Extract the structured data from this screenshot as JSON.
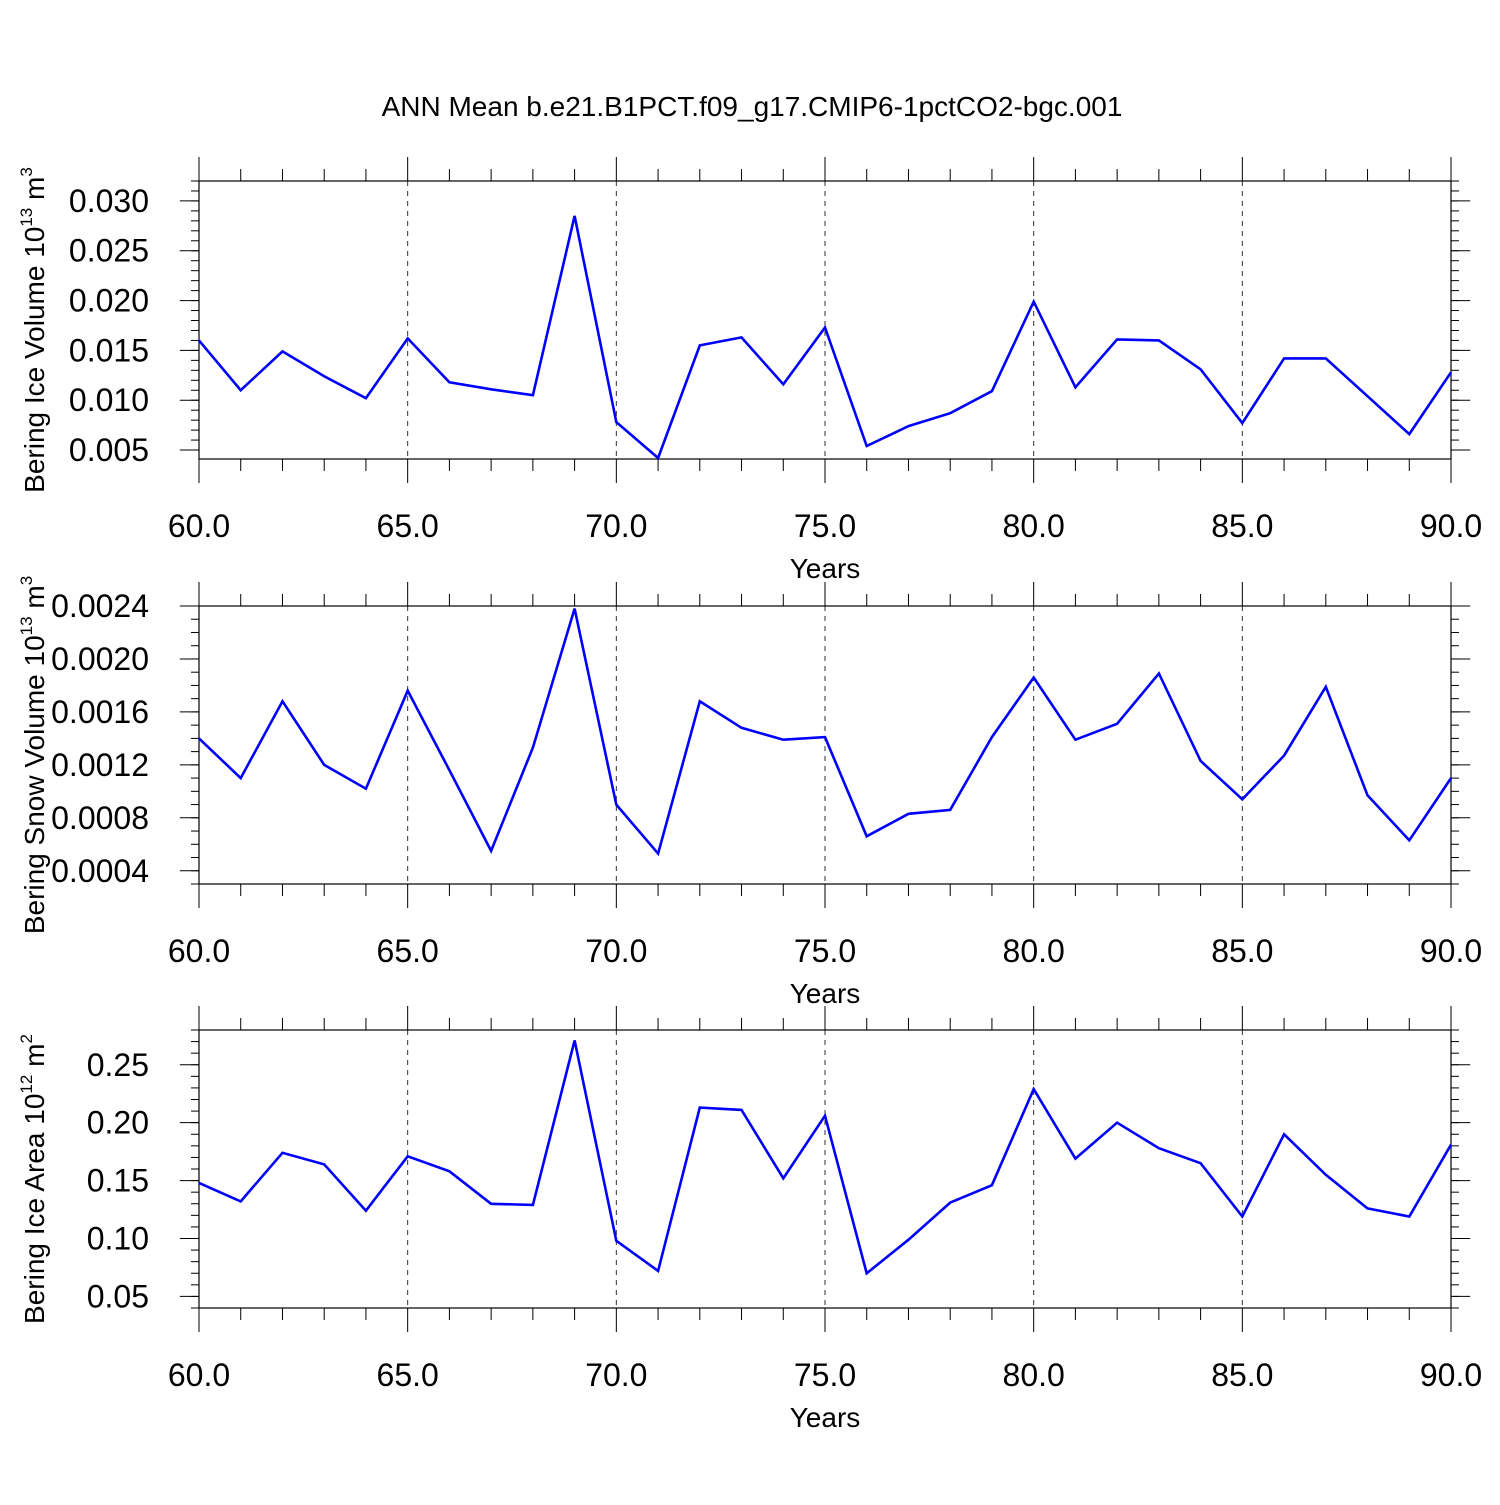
{
  "title": "ANN Mean b.e21.B1PCT.f09_g17.CMIP6-1pctCO2-bgc.001",
  "chart_data": [
    {
      "type": "line",
      "xlabel": "Years",
      "ylabel_main": "Bering Ice Volume 10",
      "ylabel_sup1": "13",
      "ylabel_mid": " m",
      "ylabel_sup2": "3",
      "xlim": [
        60,
        90
      ],
      "ylim": [
        0.0041,
        0.032
      ],
      "x_ticks": [
        60,
        65,
        70,
        75,
        80,
        85,
        90
      ],
      "x_tick_labels": [
        "60.0",
        "65.0",
        "70.0",
        "75.0",
        "80.0",
        "85.0",
        "90.0"
      ],
      "y_ticks": [
        0.005,
        0.01,
        0.015,
        0.02,
        0.025,
        0.03
      ],
      "y_tick_labels": [
        "0.005",
        "0.010",
        "0.015",
        "0.020",
        "0.025",
        "0.030"
      ],
      "y_minor_step": 0.001,
      "x": [
        60,
        61,
        62,
        63,
        64,
        65,
        66,
        67,
        68,
        69,
        70,
        71,
        72,
        73,
        74,
        75,
        76,
        77,
        78,
        79,
        80,
        81,
        82,
        83,
        84,
        85,
        86,
        87,
        88,
        89,
        90
      ],
      "series": [
        {
          "values": [
            0.016,
            0.011,
            0.0149,
            0.0124,
            0.0102,
            0.0162,
            0.0118,
            0.0111,
            0.0105,
            0.0285,
            0.0078,
            0.0042,
            0.0155,
            0.0163,
            0.0116,
            0.0173,
            0.0054,
            0.0074,
            0.0087,
            0.0109,
            0.0199,
            0.0113,
            0.0161,
            0.016,
            0.0131,
            0.0077,
            0.0142,
            0.0142,
            0.0104,
            0.0066,
            0.0128
          ],
          "color": "#0000ff"
        }
      ]
    },
    {
      "type": "line",
      "xlabel": "Years",
      "ylabel_main": "Bering Snow Volume 10",
      "ylabel_sup1": "13",
      "ylabel_mid": " m",
      "ylabel_sup2": "3",
      "xlim": [
        60,
        90
      ],
      "ylim": [
        0.0003,
        0.0024
      ],
      "x_ticks": [
        60,
        65,
        70,
        75,
        80,
        85,
        90
      ],
      "x_tick_labels": [
        "60.0",
        "65.0",
        "70.0",
        "75.0",
        "80.0",
        "85.0",
        "90.0"
      ],
      "y_ticks": [
        0.0004,
        0.0008,
        0.0012,
        0.0016,
        0.002,
        0.0024
      ],
      "y_tick_labels": [
        "0.0004",
        "0.0008",
        "0.0012",
        "0.0016",
        "0.0020",
        "0.0024"
      ],
      "y_minor_step": 0.0001,
      "x": [
        60,
        61,
        62,
        63,
        64,
        65,
        66,
        67,
        68,
        69,
        70,
        71,
        72,
        73,
        74,
        75,
        76,
        77,
        78,
        79,
        80,
        81,
        82,
        83,
        84,
        85,
        86,
        87,
        88,
        89,
        90
      ],
      "series": [
        {
          "values": [
            0.0014,
            0.0011,
            0.00168,
            0.0012,
            0.00102,
            0.00176,
            0.00116,
            0.00055,
            0.00133,
            0.00238,
            0.0009,
            0.00053,
            0.00168,
            0.00148,
            0.00139,
            0.00141,
            0.00066,
            0.00083,
            0.00086,
            0.00141,
            0.00186,
            0.00139,
            0.00151,
            0.00189,
            0.00123,
            0.00094,
            0.00127,
            0.00179,
            0.00097,
            0.00063,
            0.0011
          ],
          "color": "#0000ff"
        }
      ]
    },
    {
      "type": "line",
      "xlabel": "Years",
      "ylabel_main": "Bering Ice Area 10",
      "ylabel_sup1": "12",
      "ylabel_mid": " m",
      "ylabel_sup2": "2",
      "xlim": [
        60,
        90
      ],
      "ylim": [
        0.04,
        0.28
      ],
      "x_ticks": [
        60,
        65,
        70,
        75,
        80,
        85,
        90
      ],
      "x_tick_labels": [
        "60.0",
        "65.0",
        "70.0",
        "75.0",
        "80.0",
        "85.0",
        "90.0"
      ],
      "y_ticks": [
        0.05,
        0.1,
        0.15,
        0.2,
        0.25
      ],
      "y_tick_labels": [
        "0.05",
        "0.10",
        "0.15",
        "0.20",
        "0.25"
      ],
      "y_minor_step": 0.01,
      "x": [
        60,
        61,
        62,
        63,
        64,
        65,
        66,
        67,
        68,
        69,
        70,
        71,
        72,
        73,
        74,
        75,
        76,
        77,
        78,
        79,
        80,
        81,
        82,
        83,
        84,
        85,
        86,
        87,
        88,
        89,
        90
      ],
      "series": [
        {
          "values": [
            0.148,
            0.132,
            0.174,
            0.164,
            0.124,
            0.171,
            0.158,
            0.13,
            0.129,
            0.271,
            0.098,
            0.072,
            0.213,
            0.211,
            0.152,
            0.206,
            0.07,
            0.099,
            0.131,
            0.146,
            0.229,
            0.169,
            0.2,
            0.178,
            0.165,
            0.119,
            0.19,
            0.155,
            0.126,
            0.119,
            0.181
          ],
          "color": "#0000ff"
        }
      ]
    }
  ]
}
